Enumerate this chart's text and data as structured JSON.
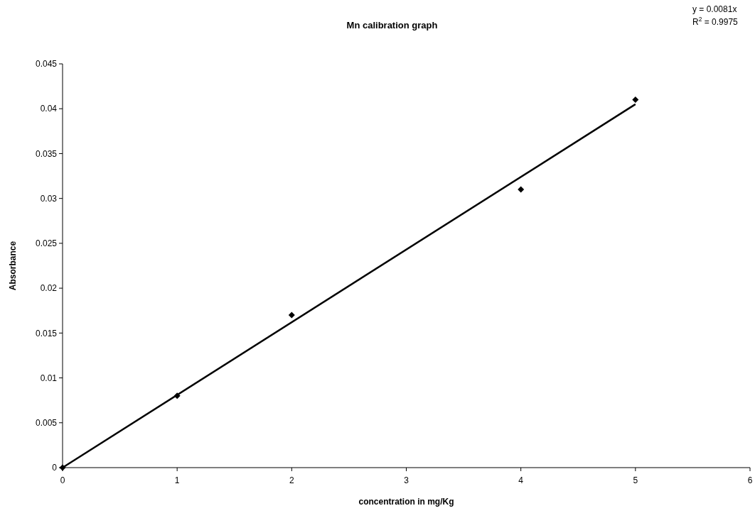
{
  "chart_data": {
    "type": "scatter",
    "title": "Mn calibration graph",
    "xlabel": "concentration in mg/Kg",
    "ylabel": "Absorbance",
    "annotations": [
      "y = 0.0081x",
      "R$^{2}$ = 0.9975"
    ],
    "series": [
      {
        "color": "#000000",
        "marker": "diamond",
        "x": [
          0,
          1,
          2,
          4,
          5
        ],
        "values": [
          0,
          0.008,
          0.017,
          0.031,
          0.041
        ]
      },
      {
        "type": "line",
        "color": "#000000",
        "marker": "none",
        "line_style": "solid",
        "x": [
          0,
          5
        ],
        "values": [
          0,
          0.0405
        ]
      }
    ],
    "xlim": [
      0,
      6
    ],
    "xticks": [
      0,
      1,
      2,
      3,
      4,
      5,
      6
    ],
    "ylim": [
      0,
      0.045
    ],
    "yticks": [
      0,
      0.005,
      0.01,
      0.015,
      0.02,
      0.025,
      0.03,
      0.035,
      0.04,
      0.045
    ],
    "grid": false
  }
}
